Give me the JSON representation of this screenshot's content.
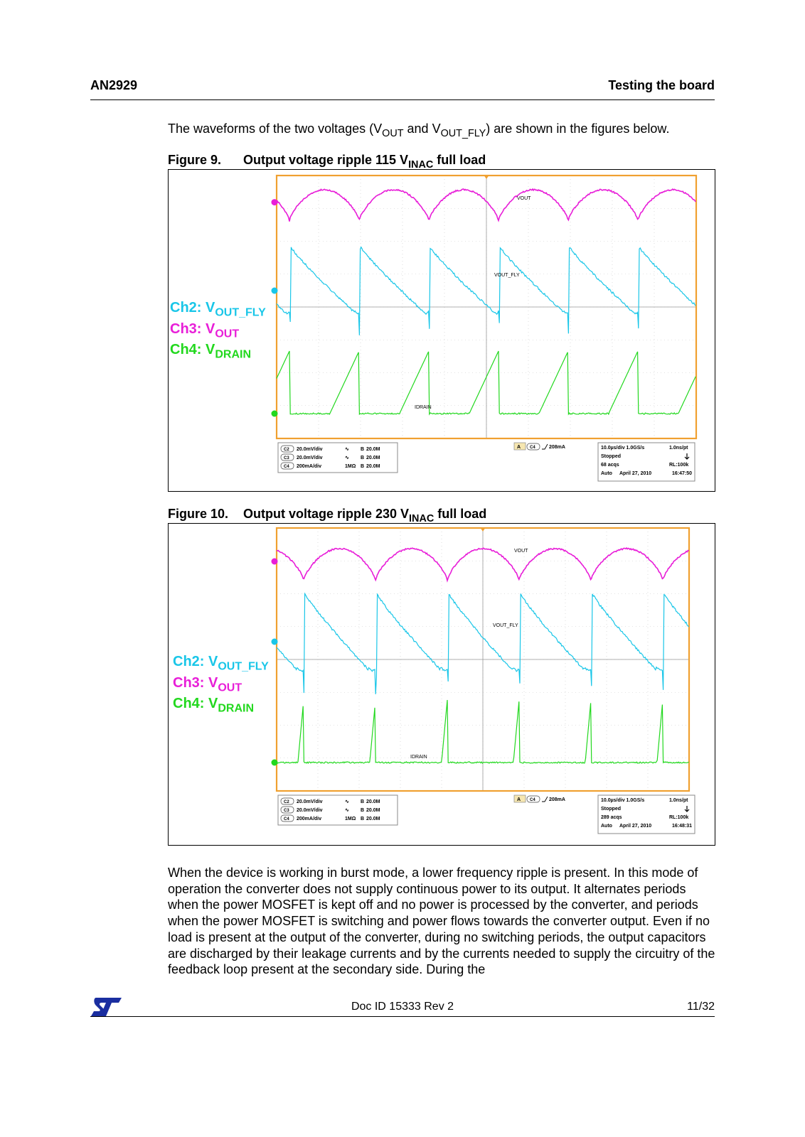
{
  "header": {
    "left": "AN2929",
    "right": "Testing the board"
  },
  "intro": {
    "p1": "The waveforms of the two voltages (V",
    "s1": "OUT",
    "p2": " and V",
    "s2": "OUT_FLY",
    "p3": ") are shown in the figures below."
  },
  "figures": [
    {
      "number": "Figure 9.",
      "title_a": "Output voltage ripple 115 V",
      "title_sub": "INAC",
      "title_b": " full load",
      "legend": [
        {
          "a": "Ch2: V",
          "sub": "OUT_FLY"
        },
        {
          "a": "Ch3: V",
          "sub": "OUT"
        },
        {
          "a": "Ch4: V",
          "sub": "DRAIN"
        }
      ],
      "scope": {
        "trace_labels": [
          "VOUT",
          "VOUT_FLY",
          "IDRAIN"
        ],
        "channels": [
          {
            "ch": "C2",
            "scale": "20.0mV/div",
            "coupling": "∿",
            "bw": "20.0M"
          },
          {
            "ch": "C3",
            "scale": "20.0mV/div",
            "coupling": "∿",
            "bw": "20.0M"
          },
          {
            "ch": "C4",
            "scale": "200mA/div",
            "coupling": "1MΩ",
            "bw": "20.0M"
          }
        ],
        "trigger": {
          "src": "C4",
          "level": "208mA"
        },
        "timebase": "10.0µs/div  1.0GS/s",
        "sample": "1.0ns/pt",
        "state": "Stopped",
        "acqs": "68 acqs",
        "rl": "RL:100k",
        "mode": "Auto",
        "date": "April 27, 2010",
        "time": "16:47:50"
      }
    },
    {
      "number": "Figure 10.",
      "title_a": "Output voltage ripple 230 V",
      "title_sub": "INAC",
      "title_b": " full load",
      "legend": [
        {
          "a": "Ch2: V",
          "sub": "OUT_FLY"
        },
        {
          "a": "Ch3: V",
          "sub": "OUT"
        },
        {
          "a": "Ch4: V",
          "sub": "DRAIN"
        }
      ],
      "scope": {
        "trace_labels": [
          "VOUT",
          "VOUT_FLY",
          "IDRAIN"
        ],
        "channels": [
          {
            "ch": "C2",
            "scale": "20.0mV/div",
            "coupling": "∿",
            "bw": "20.0M"
          },
          {
            "ch": "C3",
            "scale": "20.0mV/div",
            "coupling": "∿",
            "bw": "20.0M"
          },
          {
            "ch": "C4",
            "scale": "200mA/div",
            "coupling": "1MΩ",
            "bw": "20.0M"
          }
        ],
        "trigger": {
          "src": "C4",
          "level": "208mA"
        },
        "timebase": "10.0µs/div  1.0GS/s",
        "sample": "1.0ns/pt",
        "state": "Stopped",
        "acqs": "289 acqs",
        "rl": "RL:100k",
        "mode": "Auto",
        "date": "April 27, 2010",
        "time": "16:48:31"
      }
    }
  ],
  "colors": {
    "vout": "#e81ed8",
    "vout_fly": "#19c6e8",
    "idrain": "#22d81e",
    "grid_frame": "#f0a030"
  },
  "body_paragraph": "When the device is working in burst mode, a lower frequency ripple is present. In this mode of operation the converter does not supply continuous power to its output. It alternates periods when the power MOSFET is kept off and no power is processed by the converter, and periods when the power MOSFET is switching and power flows towards the converter output. Even if no load is present at the output of the converter, during no switching periods, the output capacitors are discharged by their leakage currents and by the currents needed to supply the circuitry of the feedback loop present at the secondary side. During the",
  "footer": {
    "doc_id": "Doc ID 15333 Rev 2",
    "page": "11/32",
    "logo": "st-logo"
  }
}
